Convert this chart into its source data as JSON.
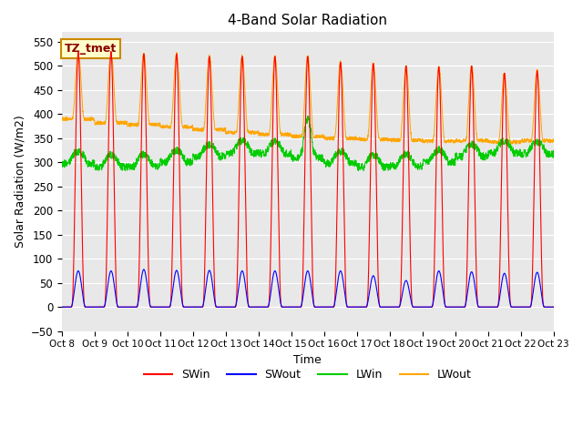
{
  "title": "4-Band Solar Radiation",
  "xlabel": "Time",
  "ylabel": "Solar Radiation (W/m2)",
  "ylim": [
    -50,
    570
  ],
  "xlim": [
    0,
    360
  ],
  "bg_color": "#e8e8e8",
  "legend_label": "TZ_tmet",
  "colors": {
    "SWin": "#ff0000",
    "SWout": "#0000ff",
    "LWin": "#00cc00",
    "LWout": "#ffa500"
  },
  "n_days": 15,
  "tick_labels": [
    "Oct 8",
    "Oct 9",
    "Oct 10",
    "Oct 11",
    "Oct 12",
    "Oct 13",
    "Oct 14",
    "Oct 15",
    "Oct 16",
    "Oct 17",
    "Oct 18",
    "Oct 19",
    "Oct 20",
    "Oct 21",
    "Oct 22",
    "Oct 23"
  ]
}
